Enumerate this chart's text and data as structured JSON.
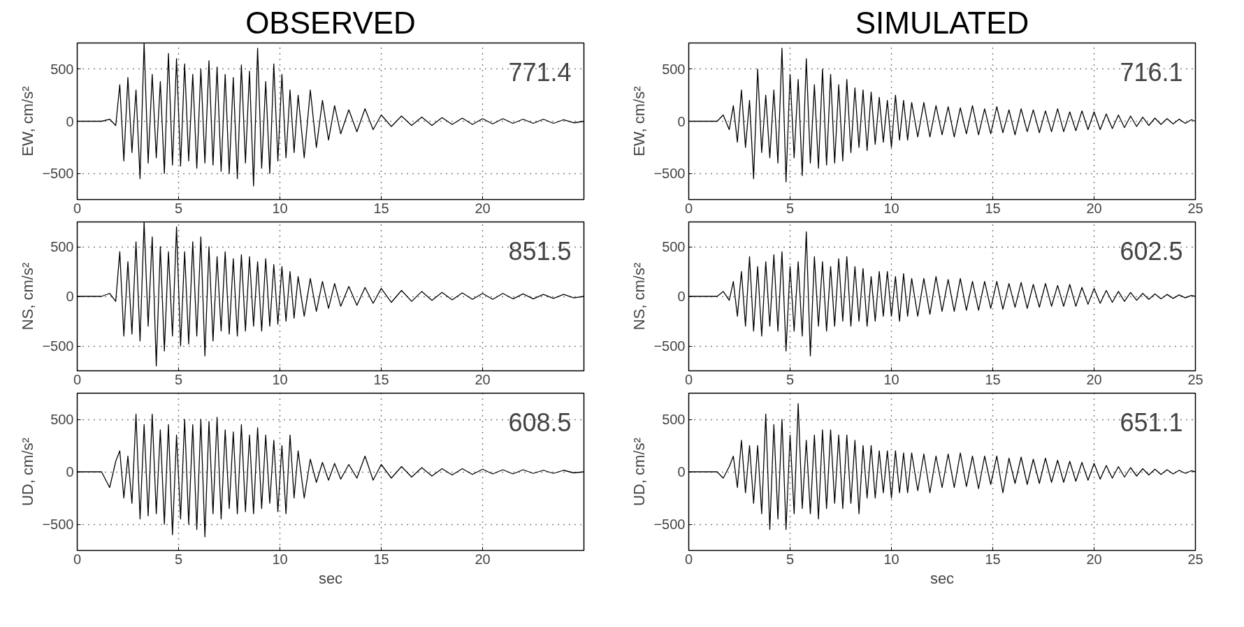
{
  "chart_data": [
    {
      "type": "line",
      "title": "OBSERVED",
      "ylabel": "EW, cm/s²",
      "annotations": [
        "771.4"
      ],
      "xlim": [
        0,
        25
      ],
      "xticks": [
        0,
        5,
        10,
        15,
        20
      ],
      "ylim": [
        -750,
        750
      ],
      "yticks": [
        -500,
        0,
        500
      ],
      "grid": true,
      "x": [
        0,
        1.2,
        1.6,
        1.9,
        2.1,
        2.3,
        2.5,
        2.7,
        2.9,
        3.1,
        3.3,
        3.5,
        3.7,
        3.9,
        4.1,
        4.3,
        4.5,
        4.7,
        4.9,
        5.1,
        5.3,
        5.5,
        5.7,
        5.9,
        6.1,
        6.3,
        6.5,
        6.7,
        6.9,
        7.1,
        7.3,
        7.5,
        7.7,
        7.9,
        8.1,
        8.3,
        8.5,
        8.7,
        8.9,
        9.1,
        9.3,
        9.5,
        9.7,
        9.9,
        10.1,
        10.3,
        10.5,
        10.7,
        10.9,
        11.2,
        11.5,
        11.8,
        12.1,
        12.4,
        12.7,
        13,
        13.4,
        13.8,
        14.2,
        14.6,
        15,
        15.5,
        16,
        16.5,
        17,
        17.5,
        18,
        18.5,
        19,
        19.5,
        20,
        20.5,
        21,
        21.5,
        22,
        22.5,
        23,
        23.5,
        24,
        24.5,
        25
      ],
      "series": [
        {
          "color": "#000000",
          "values": [
            0,
            0,
            20,
            -40,
            350,
            -380,
            420,
            -300,
            300,
            -550,
            750,
            -400,
            450,
            -350,
            380,
            -500,
            650,
            -420,
            600,
            -430,
            550,
            -380,
            450,
            -450,
            500,
            -400,
            580,
            -420,
            520,
            -480,
            450,
            -500,
            420,
            -550,
            540,
            -400,
            480,
            -620,
            700,
            -450,
            380,
            -500,
            550,
            -380,
            450,
            -350,
            300,
            -300,
            250,
            -350,
            300,
            -250,
            200,
            -180,
            150,
            -120,
            110,
            -100,
            120,
            -80,
            60,
            -50,
            50,
            -40,
            40,
            -40,
            35,
            -30,
            30,
            -30,
            25,
            -25,
            25,
            -20,
            20,
            -20,
            20,
            -20,
            15,
            -15,
            0
          ]
        }
      ]
    },
    {
      "type": "line",
      "title": "SIMULATED",
      "ylabel": "EW, cm/s²",
      "annotations": [
        "716.1"
      ],
      "xlim": [
        0,
        25
      ],
      "xticks": [
        0,
        5,
        10,
        15,
        20,
        25
      ],
      "ylim": [
        -750,
        750
      ],
      "yticks": [
        -500,
        0,
        500
      ],
      "grid": true,
      "x": [
        0,
        1.4,
        1.7,
        2.0,
        2.2,
        2.4,
        2.6,
        2.8,
        3.0,
        3.2,
        3.4,
        3.6,
        3.8,
        4.0,
        4.2,
        4.4,
        4.6,
        4.8,
        5.0,
        5.2,
        5.4,
        5.6,
        5.8,
        6.0,
        6.2,
        6.4,
        6.6,
        6.8,
        7.0,
        7.2,
        7.4,
        7.6,
        7.8,
        8.0,
        8.2,
        8.4,
        8.6,
        8.8,
        9.0,
        9.2,
        9.4,
        9.6,
        9.8,
        10.0,
        10.2,
        10.4,
        10.6,
        10.8,
        11.0,
        11.3,
        11.6,
        11.9,
        12.2,
        12.5,
        12.8,
        13.1,
        13.4,
        13.7,
        14.0,
        14.3,
        14.6,
        14.9,
        15.2,
        15.5,
        15.8,
        16.1,
        16.4,
        16.7,
        17.0,
        17.3,
        17.6,
        17.9,
        18.2,
        18.5,
        18.8,
        19.1,
        19.4,
        19.7,
        20.0,
        20.3,
        20.6,
        20.9,
        21.2,
        21.5,
        21.8,
        22.1,
        22.4,
        22.7,
        23.0,
        23.3,
        23.6,
        23.9,
        24.2,
        24.5,
        24.8,
        25
      ],
      "series": [
        {
          "color": "#000000",
          "values": [
            0,
            0,
            60,
            -80,
            150,
            -200,
            300,
            -250,
            200,
            -550,
            500,
            -300,
            250,
            -350,
            300,
            -400,
            700,
            -580,
            450,
            -350,
            400,
            -520,
            600,
            -400,
            350,
            -450,
            500,
            -420,
            450,
            -400,
            350,
            -380,
            400,
            -300,
            320,
            -250,
            300,
            -280,
            280,
            -220,
            230,
            -200,
            200,
            -250,
            250,
            -180,
            200,
            -180,
            180,
            -150,
            180,
            -150,
            150,
            -130,
            140,
            -150,
            130,
            -120,
            150,
            -130,
            120,
            -120,
            140,
            -110,
            110,
            -130,
            120,
            -100,
            110,
            -110,
            100,
            -100,
            120,
            -100,
            90,
            -90,
            100,
            -80,
            90,
            -80,
            70,
            -70,
            60,
            -60,
            50,
            -50,
            40,
            -40,
            30,
            -30,
            25,
            -25,
            20,
            -20,
            15,
            0
          ]
        }
      ]
    },
    {
      "type": "line",
      "ylabel": "NS, cm/s²",
      "annotations": [
        "851.5"
      ],
      "xlim": [
        0,
        25
      ],
      "xticks": [
        0,
        5,
        10,
        15,
        20
      ],
      "ylim": [
        -750,
        750
      ],
      "yticks": [
        -500,
        0,
        500
      ],
      "grid": true,
      "x": [
        0,
        1.2,
        1.6,
        1.9,
        2.1,
        2.3,
        2.5,
        2.7,
        2.9,
        3.1,
        3.3,
        3.5,
        3.7,
        3.9,
        4.1,
        4.3,
        4.5,
        4.7,
        4.9,
        5.1,
        5.3,
        5.5,
        5.7,
        5.9,
        6.1,
        6.3,
        6.5,
        6.7,
        6.9,
        7.1,
        7.3,
        7.5,
        7.7,
        7.9,
        8.1,
        8.3,
        8.5,
        8.7,
        8.9,
        9.1,
        9.3,
        9.5,
        9.7,
        9.9,
        10.1,
        10.3,
        10.5,
        10.7,
        10.9,
        11.2,
        11.5,
        11.8,
        12.1,
        12.4,
        12.7,
        13,
        13.4,
        13.8,
        14.2,
        14.6,
        15,
        15.5,
        16,
        16.5,
        17,
        17.5,
        18,
        18.5,
        19,
        19.5,
        20,
        20.5,
        21,
        21.5,
        22,
        22.5,
        23,
        23.5,
        24,
        24.5,
        25
      ],
      "series": [
        {
          "color": "#000000",
          "values": [
            0,
            0,
            30,
            -50,
            450,
            -400,
            350,
            -380,
            550,
            -450,
            750,
            -300,
            600,
            -700,
            500,
            -550,
            450,
            -400,
            700,
            -500,
            450,
            -480,
            550,
            -400,
            600,
            -600,
            500,
            -450,
            400,
            -350,
            450,
            -380,
            380,
            -400,
            420,
            -350,
            400,
            -300,
            350,
            -350,
            380,
            -300,
            320,
            -280,
            300,
            -250,
            250,
            -220,
            200,
            -200,
            180,
            -150,
            150,
            -120,
            130,
            -100,
            100,
            -90,
            90,
            -70,
            80,
            -60,
            60,
            -50,
            50,
            -40,
            40,
            -35,
            35,
            -30,
            30,
            -30,
            30,
            -25,
            25,
            -25,
            20,
            -20,
            20,
            -15,
            0
          ]
        }
      ]
    },
    {
      "type": "line",
      "ylabel": "NS, cm/s²",
      "annotations": [
        "602.5"
      ],
      "xlim": [
        0,
        25
      ],
      "xticks": [
        0,
        5,
        10,
        15,
        20,
        25
      ],
      "ylim": [
        -750,
        750
      ],
      "yticks": [
        -500,
        0,
        500
      ],
      "grid": true,
      "x": [
        0,
        1.4,
        1.7,
        2.0,
        2.2,
        2.4,
        2.6,
        2.8,
        3.0,
        3.2,
        3.4,
        3.6,
        3.8,
        4.0,
        4.2,
        4.4,
        4.6,
        4.8,
        5.0,
        5.2,
        5.4,
        5.6,
        5.8,
        6.0,
        6.2,
        6.4,
        6.6,
        6.8,
        7.0,
        7.2,
        7.4,
        7.6,
        7.8,
        8.0,
        8.2,
        8.4,
        8.6,
        8.8,
        9.0,
        9.2,
        9.4,
        9.6,
        9.8,
        10.0,
        10.2,
        10.4,
        10.6,
        10.8,
        11.0,
        11.3,
        11.6,
        11.9,
        12.2,
        12.5,
        12.8,
        13.1,
        13.4,
        13.7,
        14.0,
        14.3,
        14.6,
        14.9,
        15.2,
        15.5,
        15.8,
        16.1,
        16.4,
        16.7,
        17.0,
        17.3,
        17.6,
        17.9,
        18.2,
        18.5,
        18.8,
        19.1,
        19.4,
        19.7,
        20.0,
        20.3,
        20.6,
        20.9,
        21.2,
        21.5,
        21.8,
        22.1,
        22.4,
        22.7,
        23.0,
        23.3,
        23.6,
        23.9,
        24.2,
        24.5,
        24.8,
        25
      ],
      "series": [
        {
          "color": "#000000",
          "values": [
            0,
            0,
            50,
            -40,
            150,
            -200,
            250,
            -300,
            400,
            -350,
            300,
            -400,
            350,
            -300,
            420,
            -350,
            450,
            -550,
            300,
            -350,
            350,
            -400,
            650,
            -600,
            400,
            -300,
            350,
            -350,
            300,
            -300,
            380,
            -250,
            400,
            -300,
            300,
            -250,
            280,
            -300,
            200,
            -250,
            250,
            -200,
            250,
            -200,
            200,
            -250,
            230,
            -200,
            180,
            -200,
            180,
            -180,
            200,
            -150,
            170,
            -150,
            180,
            -140,
            150,
            -140,
            150,
            -120,
            150,
            -130,
            130,
            -110,
            140,
            -120,
            120,
            -110,
            130,
            -100,
            110,
            -100,
            120,
            -100,
            90,
            -80,
            80,
            -70,
            60,
            -60,
            50,
            -50,
            40,
            -40,
            30,
            -30,
            25,
            -25,
            20,
            -20,
            15,
            -15,
            10,
            0
          ]
        }
      ]
    },
    {
      "type": "line",
      "ylabel": "UD, cm/s²",
      "xlabel": "sec",
      "annotations": [
        "608.5"
      ],
      "xlim": [
        0,
        25
      ],
      "xticks": [
        0,
        5,
        10,
        15,
        20
      ],
      "ylim": [
        -750,
        750
      ],
      "yticks": [
        -500,
        0,
        500
      ],
      "grid": true,
      "x": [
        0,
        1.2,
        1.6,
        1.9,
        2.1,
        2.3,
        2.5,
        2.7,
        2.9,
        3.1,
        3.3,
        3.5,
        3.7,
        3.9,
        4.1,
        4.3,
        4.5,
        4.7,
        4.9,
        5.1,
        5.3,
        5.5,
        5.7,
        5.9,
        6.1,
        6.3,
        6.5,
        6.7,
        6.9,
        7.1,
        7.3,
        7.5,
        7.7,
        7.9,
        8.1,
        8.3,
        8.5,
        8.7,
        8.9,
        9.1,
        9.3,
        9.5,
        9.7,
        9.9,
        10.1,
        10.3,
        10.5,
        10.7,
        10.9,
        11.2,
        11.5,
        11.8,
        12.1,
        12.4,
        12.7,
        13,
        13.4,
        13.8,
        14.2,
        14.6,
        15,
        15.5,
        16,
        16.5,
        17,
        17.5,
        18,
        18.5,
        19,
        19.5,
        20,
        20.5,
        21,
        21.5,
        22,
        22.5,
        23,
        23.5,
        24,
        24.5,
        25
      ],
      "series": [
        {
          "color": "#000000",
          "values": [
            0,
            0,
            -150,
            100,
            200,
            -250,
            150,
            -300,
            550,
            -450,
            450,
            -420,
            550,
            -400,
            400,
            -500,
            450,
            -600,
            350,
            -450,
            500,
            -500,
            450,
            -550,
            500,
            -620,
            480,
            -400,
            520,
            -450,
            400,
            -350,
            380,
            -400,
            450,
            -380,
            350,
            -400,
            420,
            -350,
            350,
            -300,
            300,
            -380,
            250,
            -400,
            350,
            -250,
            200,
            -250,
            120,
            -100,
            90,
            -80,
            80,
            -70,
            70,
            -60,
            150,
            -80,
            70,
            -60,
            50,
            -50,
            40,
            -40,
            30,
            -30,
            30,
            -25,
            25,
            -20,
            20,
            -20,
            20,
            -15,
            15,
            -15,
            15,
            -10,
            0
          ]
        }
      ]
    },
    {
      "type": "line",
      "ylabel": "UD, cm/s²",
      "xlabel": "sec",
      "annotations": [
        "651.1"
      ],
      "xlim": [
        0,
        25
      ],
      "xticks": [
        0,
        5,
        10,
        15,
        20,
        25
      ],
      "ylim": [
        -750,
        750
      ],
      "yticks": [
        -500,
        0,
        500
      ],
      "grid": true,
      "x": [
        0,
        1.4,
        1.7,
        2.0,
        2.2,
        2.4,
        2.6,
        2.8,
        3.0,
        3.2,
        3.4,
        3.6,
        3.8,
        4.0,
        4.2,
        4.4,
        4.6,
        4.8,
        5.0,
        5.2,
        5.4,
        5.6,
        5.8,
        6.0,
        6.2,
        6.4,
        6.6,
        6.8,
        7.0,
        7.2,
        7.4,
        7.6,
        7.8,
        8.0,
        8.2,
        8.4,
        8.6,
        8.8,
        9.0,
        9.2,
        9.4,
        9.6,
        9.8,
        10.0,
        10.2,
        10.4,
        10.6,
        10.8,
        11.0,
        11.3,
        11.6,
        11.9,
        12.2,
        12.5,
        12.8,
        13.1,
        13.4,
        13.7,
        14.0,
        14.3,
        14.6,
        14.9,
        15.2,
        15.5,
        15.8,
        16.1,
        16.4,
        16.7,
        17.0,
        17.3,
        17.6,
        17.9,
        18.2,
        18.5,
        18.8,
        19.1,
        19.4,
        19.7,
        20.0,
        20.3,
        20.6,
        20.9,
        21.2,
        21.5,
        21.8,
        22.1,
        22.4,
        22.7,
        23.0,
        23.3,
        23.6,
        23.9,
        24.2,
        24.5,
        24.8,
        25
      ],
      "series": [
        {
          "color": "#000000",
          "values": [
            0,
            0,
            -60,
            50,
            150,
            -150,
            300,
            -200,
            250,
            -300,
            250,
            -400,
            550,
            -550,
            450,
            -450,
            500,
            -550,
            350,
            -400,
            650,
            -350,
            300,
            -400,
            350,
            -450,
            400,
            -350,
            400,
            -300,
            350,
            -350,
            350,
            -300,
            300,
            -400,
            250,
            -250,
            250,
            -250,
            200,
            -200,
            200,
            -250,
            200,
            -200,
            180,
            -200,
            180,
            -180,
            170,
            -200,
            150,
            -150,
            170,
            -150,
            180,
            -140,
            150,
            -160,
            150,
            -120,
            150,
            -200,
            130,
            -110,
            140,
            -120,
            120,
            -110,
            130,
            -100,
            110,
            -100,
            100,
            -90,
            90,
            -80,
            80,
            -70,
            60,
            -60,
            50,
            -50,
            40,
            -40,
            30,
            -30,
            25,
            -25,
            20,
            -20,
            15,
            -15,
            10,
            0
          ]
        }
      ]
    }
  ]
}
